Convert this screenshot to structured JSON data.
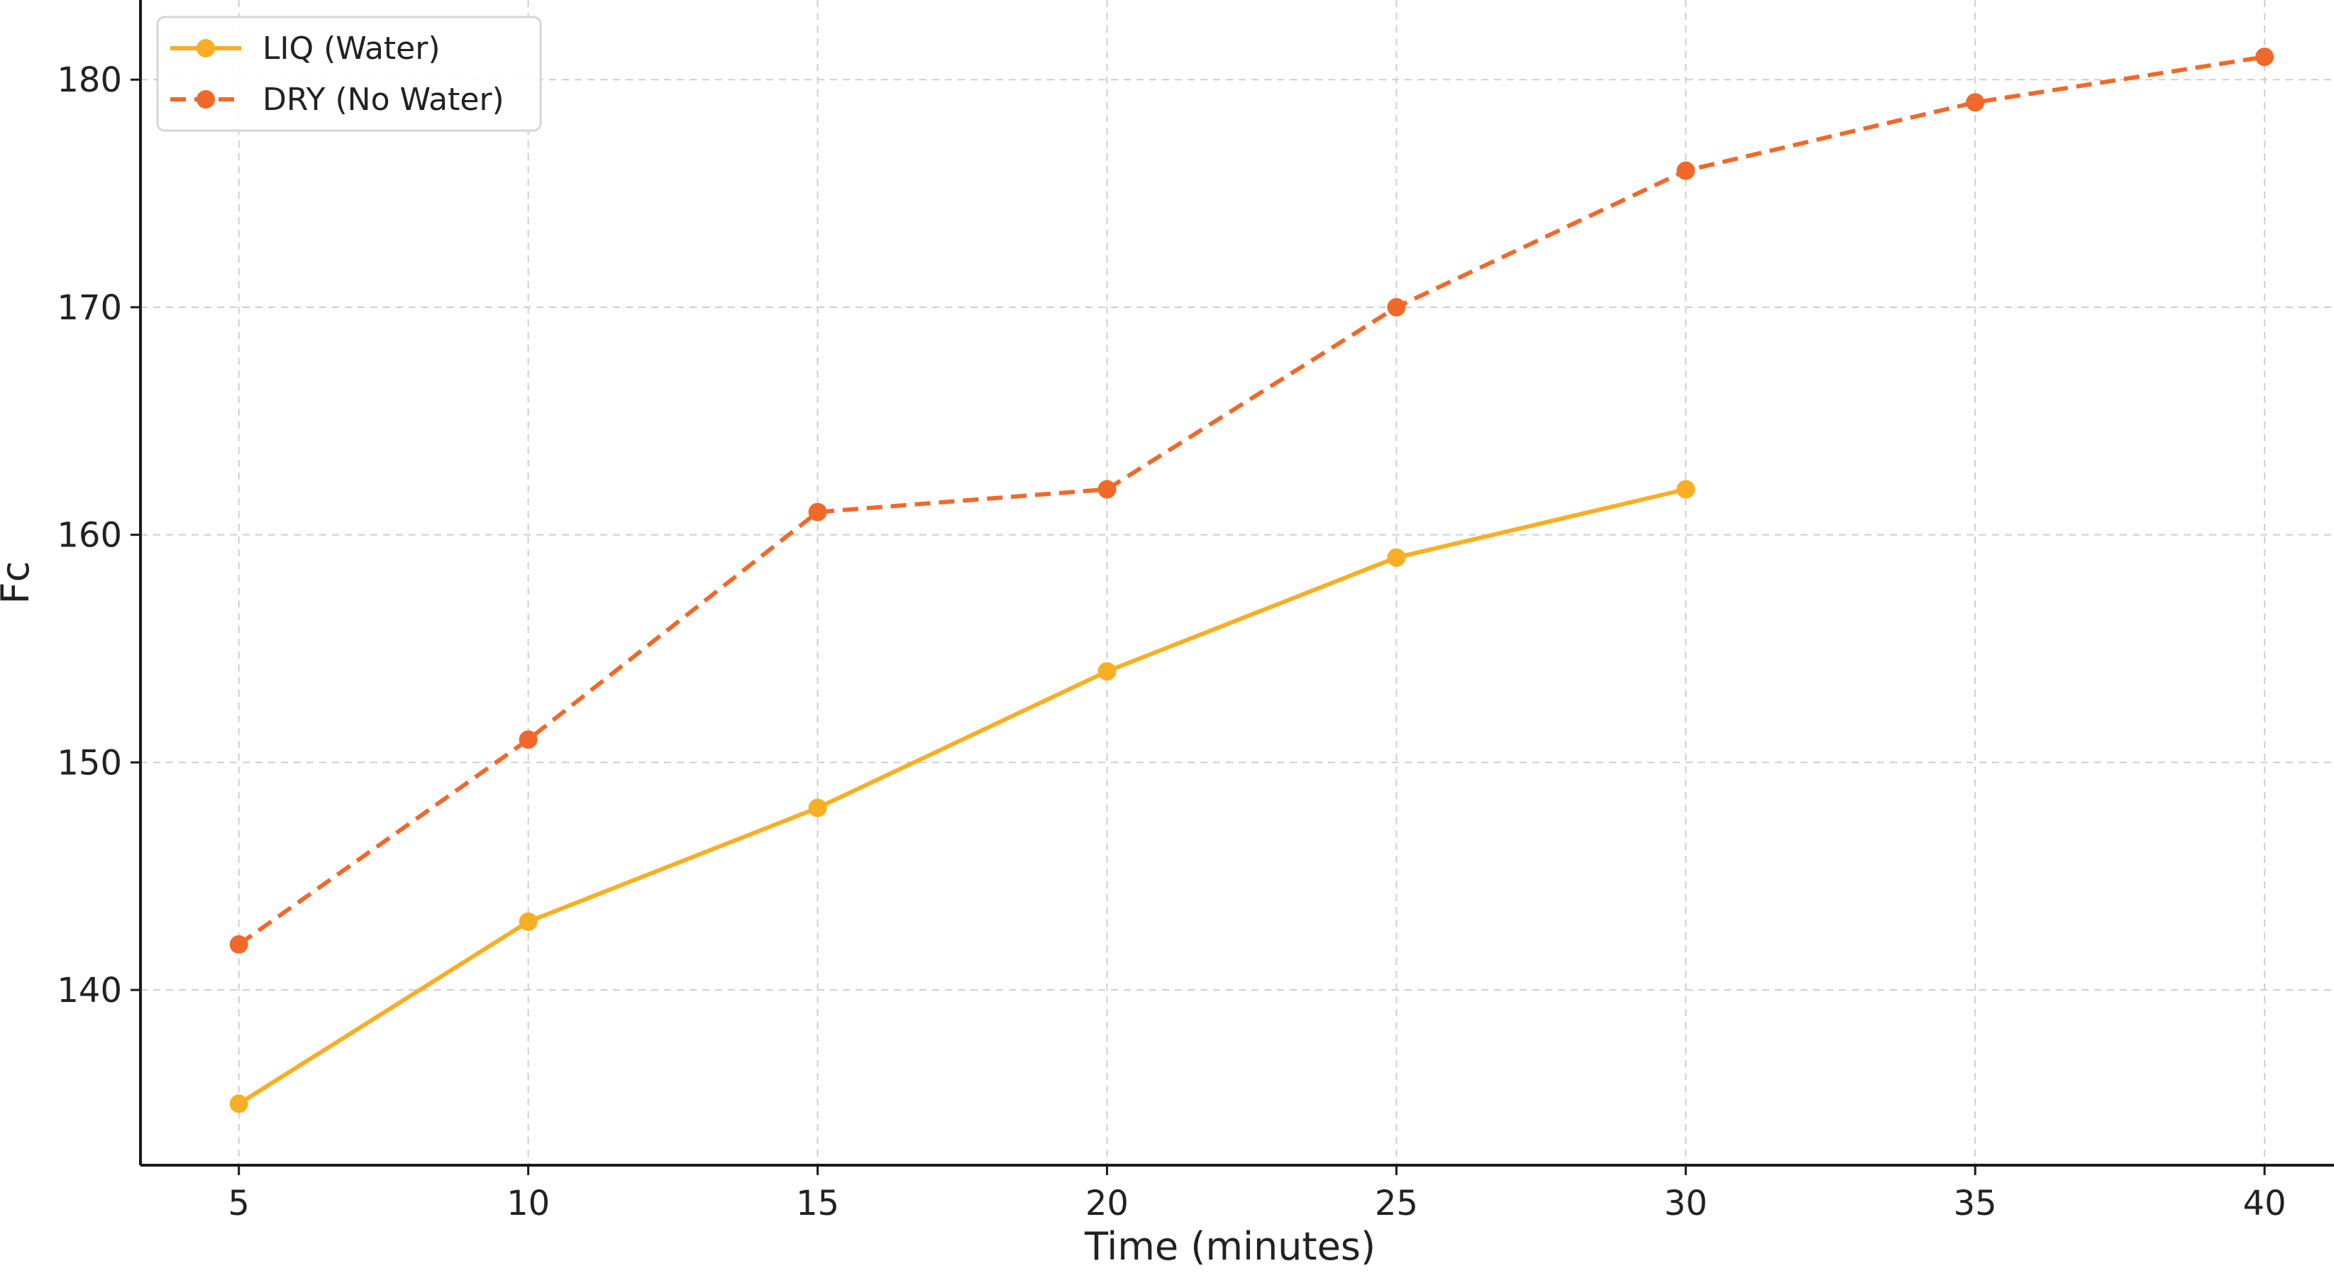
{
  "chart_data": {
    "type": "line",
    "title": "",
    "xlabel": "Time (minutes)",
    "ylabel": "Fc",
    "xlim": [
      3.3,
      41.2
    ],
    "ylim": [
      132.3,
      183.5
    ],
    "xticks": [
      5,
      10,
      15,
      20,
      25,
      30,
      35,
      40
    ],
    "yticks": [
      140,
      150,
      160,
      170,
      180
    ],
    "grid": true,
    "legend_position": "top-left",
    "series": [
      {
        "name": "LIQ (Water)",
        "color": "#F9AE24",
        "line_style": "solid",
        "x": [
          5,
          10,
          15,
          20,
          25,
          30
        ],
        "y": [
          135,
          143,
          148,
          154,
          159,
          162
        ]
      },
      {
        "name": "DRY (No Water)",
        "color": "#F0692A",
        "line_style": "dashed",
        "x": [
          5,
          10,
          15,
          20,
          25,
          30,
          35,
          40
        ],
        "y": [
          142,
          151,
          161,
          162,
          170,
          176,
          179,
          181
        ]
      }
    ]
  }
}
